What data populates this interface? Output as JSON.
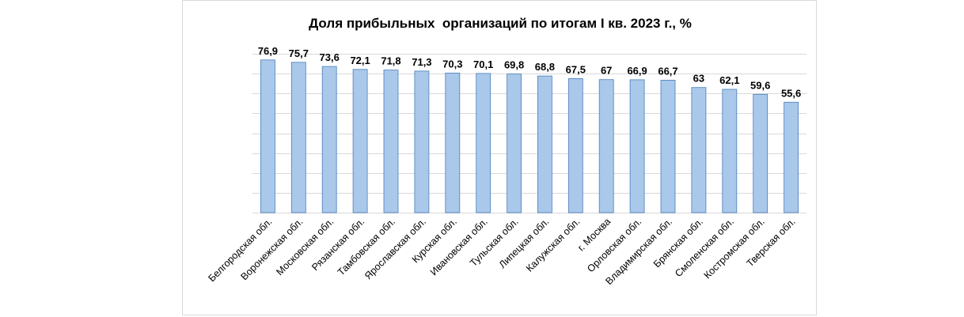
{
  "chart_data": {
    "type": "bar",
    "title": "Доля прибыльных  организаций по итогам I кв. 2023 г., %",
    "xlabel": "",
    "ylabel": "",
    "categories": [
      "Белгородская обл.",
      "Воронежская обл.",
      "Московская обл.",
      "Рязанская обл.",
      "Тамбовская обл.",
      "Ярославская обл.",
      "Курская обл.",
      "Ивановская обл.",
      "Тульская обл.",
      "Липецкая обл.",
      "Калужская обл.",
      "г. Москва",
      "Орловская обл.",
      "Владимирская обл.",
      "Брянская обл.",
      "Смоленская обл.",
      "Костромская обл.",
      "Тверская обл."
    ],
    "values": [
      76.9,
      75.7,
      73.6,
      72.1,
      71.8,
      71.3,
      70.3,
      70.1,
      69.8,
      68.8,
      67.5,
      67,
      66.9,
      66.7,
      63,
      62.1,
      59.6,
      55.6
    ],
    "value_labels": [
      "76,9",
      "75,7",
      "73,6",
      "72,1",
      "71,8",
      "71,3",
      "70,3",
      "70,1",
      "69,8",
      "68,8",
      "67,5",
      "67",
      "66,9",
      "66,7",
      "63",
      "62,1",
      "59,6",
      "55,6"
    ],
    "ylim": [
      0,
      80
    ],
    "grid": true,
    "legend": "none",
    "bar_color": "#a9c8ea",
    "bar_edge_color": "#4a7ebb",
    "grid_color": "#d9d9d9"
  }
}
